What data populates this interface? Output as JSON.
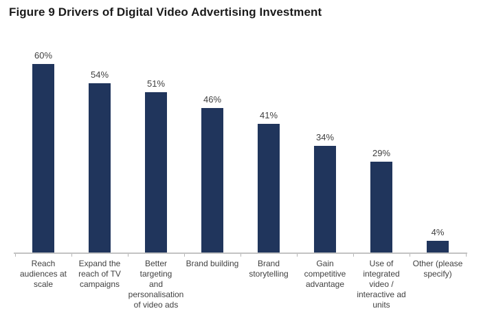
{
  "title": "Figure 9 Drivers of Digital Video Advertising Investment",
  "chart_data": {
    "type": "bar",
    "title": "Figure 9 Drivers of Digital Video Advertising Investment",
    "categories": [
      "Reach audiences at scale",
      "Expand the reach of TV campaigns",
      "Better targeting and personalisation of video ads",
      "Brand building",
      "Brand storytelling",
      "Gain competitive advantage",
      "Use of integrated video / interactive ad units",
      "Other (please specify)"
    ],
    "category_label_lines": [
      [
        "Reach",
        "audiences at",
        "scale"
      ],
      [
        "Expand the",
        "reach of TV",
        "campaigns"
      ],
      [
        "Better targeting",
        "and",
        "personalisation",
        "of video ads"
      ],
      [
        "Brand building"
      ],
      [
        "Brand",
        "storytelling"
      ],
      [
        "Gain",
        "competitive",
        "advantage"
      ],
      [
        "Use of",
        "integrated",
        "video /",
        "interactive ad",
        "units"
      ],
      [
        "Other (please",
        "specify)"
      ]
    ],
    "values": [
      60,
      54,
      51,
      46,
      41,
      34,
      29,
      4
    ],
    "value_labels": [
      "60%",
      "54%",
      "51%",
      "46%",
      "41%",
      "34%",
      "29%",
      "4%"
    ],
    "ylabel": "",
    "xlabel": "",
    "ylim": [
      0,
      60
    ],
    "grid": false,
    "legend": false,
    "bar_color": "#20355c",
    "axis_color": "#c3c3c3",
    "text_color": "#3f3f3f"
  }
}
